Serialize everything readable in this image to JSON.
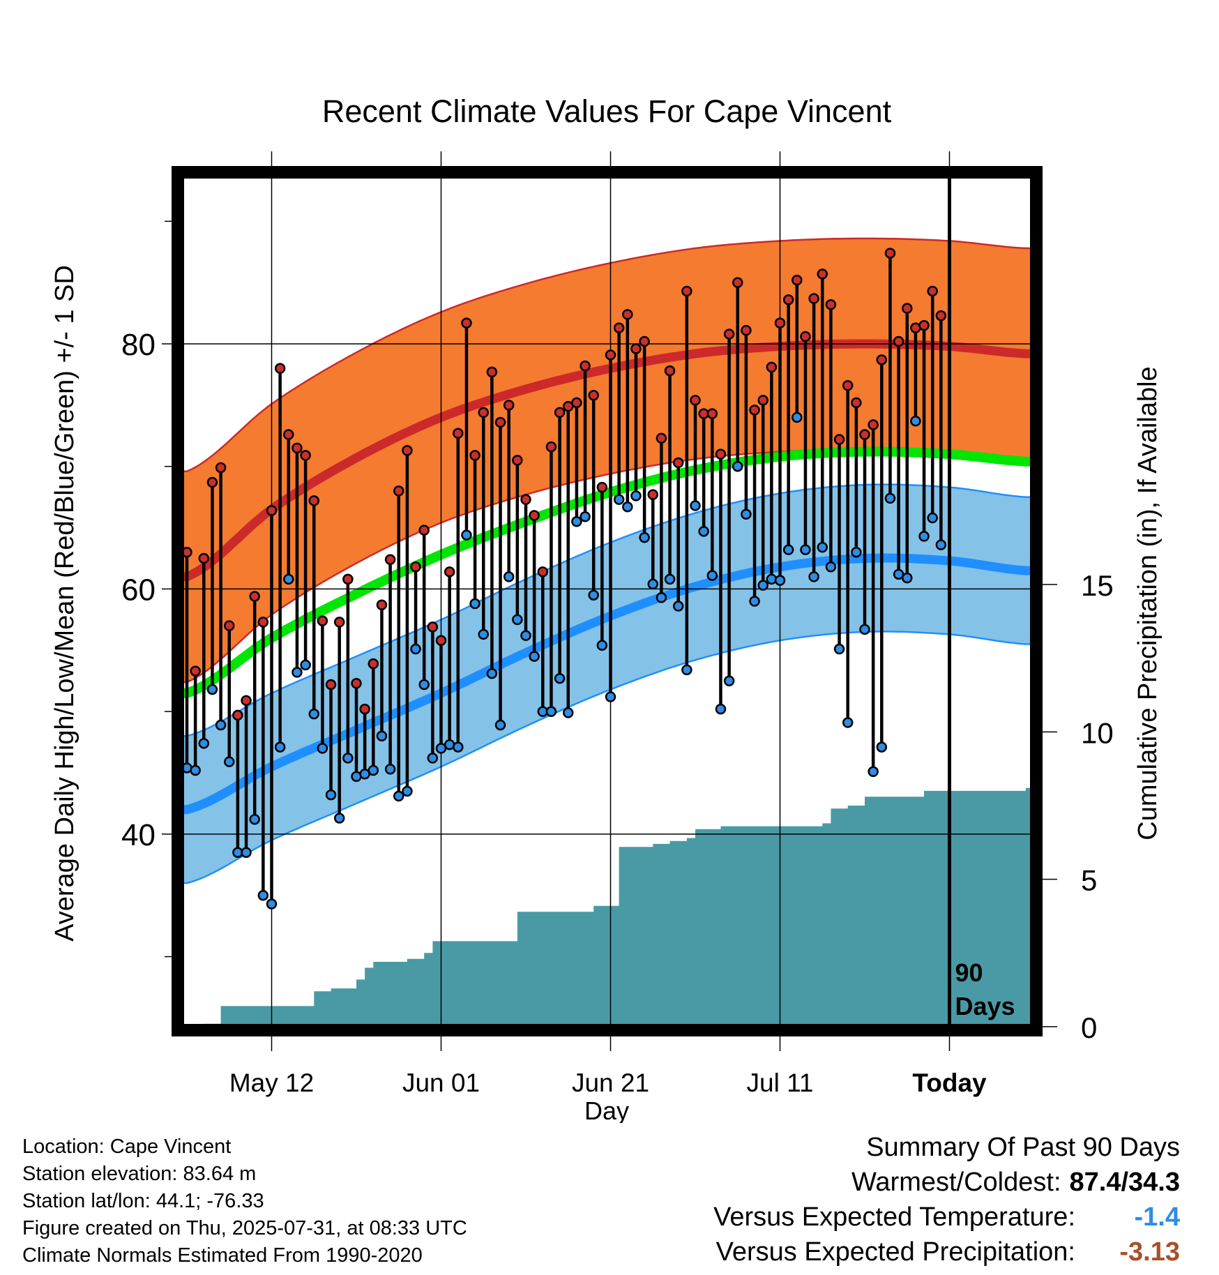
{
  "chart_data": {
    "type": "line",
    "title": "Recent Climate Values For Cape Vincent",
    "ylabel": "Average Daily High/Low/Mean (Red/Blue/Green) +/- 1 SD",
    "y2label": "Cumulative Precipitation (in), If Available",
    "xlabel": "Day",
    "ylim": [
      24,
      94
    ],
    "y2lim": [
      0,
      29.1
    ],
    "yticks": [
      "40",
      "60",
      "80"
    ],
    "y2ticks": [
      "0",
      "5",
      "10",
      "15"
    ],
    "xticks": [
      {
        "day": 10,
        "label": "May 12"
      },
      {
        "day": 30,
        "label": "Jun 01"
      },
      {
        "day": 50,
        "label": "Jun 21"
      },
      {
        "day": 70,
        "label": "Jul 11"
      },
      {
        "day": 90,
        "label": "Today"
      }
    ],
    "today_marker": {
      "day": 90,
      "label_line1": "90",
      "label_line2": "Days"
    },
    "grid": true,
    "colors": {
      "high_band": "#f47b30",
      "high_line": "#cc2a2a",
      "mean_line": "#00e600",
      "low_band": "#85c2e8",
      "low_line": "#1f8fff",
      "precip": "#4a9aa5",
      "high_dot": "#c9302c",
      "low_dot": "#2f8de4"
    },
    "normals": {
      "days": [
        0,
        10,
        20,
        30,
        40,
        50,
        60,
        70,
        80,
        90,
        99
      ],
      "high": [
        61.0,
        66.5,
        70.7,
        74.0,
        76.3,
        78.0,
        79.2,
        79.8,
        80.0,
        79.8,
        79.2
      ],
      "high_sd": 8.6,
      "low": [
        42.0,
        45.5,
        48.5,
        51.5,
        54.8,
        57.8,
        60.2,
        61.8,
        62.5,
        62.3,
        61.5
      ],
      "low_sd": 6.0,
      "mean": [
        51.5,
        56.0,
        59.6,
        62.8,
        65.5,
        67.9,
        69.7,
        70.8,
        71.2,
        71.0,
        70.4
      ]
    },
    "series": [
      {
        "name": "Daily High",
        "values": [
          63.0,
          53.3,
          62.5,
          68.7,
          69.9,
          57.0,
          49.7,
          50.9,
          59.4,
          57.3,
          66.4,
          78.0,
          72.6,
          71.5,
          70.9,
          67.2,
          57.4,
          52.2,
          57.3,
          60.8,
          52.3,
          50.2,
          53.9,
          58.7,
          62.4,
          68.0,
          71.3,
          61.8,
          64.8,
          56.9,
          55.8,
          61.4,
          72.7,
          81.7,
          70.9,
          74.4,
          77.7,
          73.6,
          75.0,
          70.5,
          67.3,
          66.0,
          61.4,
          71.6,
          74.4,
          74.9,
          75.2,
          78.2,
          75.8,
          68.3,
          79.1,
          81.3,
          82.4,
          79.6,
          80.2,
          67.7,
          72.3,
          77.8,
          70.3,
          84.3,
          75.4,
          74.3,
          74.3,
          71.0,
          80.8,
          85.0,
          81.1,
          74.6,
          75.4,
          78.1,
          81.7,
          83.6,
          85.2,
          80.6,
          83.7,
          85.7,
          83.2,
          72.2,
          76.6,
          75.2,
          72.6,
          73.4,
          78.7,
          87.4,
          80.2,
          82.9,
          81.3,
          81.5,
          84.3,
          82.3
        ],
        "lows": [
          45.4,
          45.2,
          47.4,
          51.8,
          48.9,
          45.9,
          38.5,
          38.5,
          41.2,
          35.0,
          34.3,
          47.1,
          60.8,
          53.2,
          53.8,
          49.8,
          47.0,
          43.2,
          41.3,
          46.2,
          44.7,
          44.9,
          45.2,
          48.0,
          45.3,
          43.1,
          43.5,
          55.1,
          52.2,
          46.2,
          47.0,
          47.3,
          47.1,
          64.4,
          58.8,
          56.3,
          53.1,
          48.9,
          61.0,
          57.5,
          56.2,
          54.5,
          50.0,
          50.0,
          52.7,
          49.9,
          65.5,
          65.9,
          59.5,
          55.4,
          51.2,
          67.3,
          66.7,
          67.6,
          64.2,
          60.4,
          59.3,
          60.8,
          58.6,
          53.4,
          66.8,
          64.7,
          61.1,
          50.2,
          52.5,
          70.0,
          66.1,
          59.0,
          60.3,
          60.8,
          60.7,
          63.2,
          74.0,
          63.2,
          61.0,
          63.4,
          61.8,
          55.1,
          49.1,
          63.0,
          56.7,
          45.1,
          47.1,
          67.4,
          61.2,
          60.9,
          73.7,
          64.3,
          65.8,
          63.6
        ]
      }
    ],
    "precip_steps": [
      [
        0,
        0.0
      ],
      [
        2,
        0.1
      ],
      [
        4,
        0.7
      ],
      [
        15,
        1.2
      ],
      [
        17,
        1.3
      ],
      [
        20,
        1.6
      ],
      [
        21,
        2.0
      ],
      [
        22,
        2.2
      ],
      [
        26,
        2.3
      ],
      [
        28,
        2.5
      ],
      [
        29,
        2.9
      ],
      [
        35,
        2.9
      ],
      [
        39,
        3.9
      ],
      [
        48,
        4.1
      ],
      [
        50,
        4.1
      ],
      [
        51,
        6.1
      ],
      [
        55,
        6.2
      ],
      [
        57,
        6.3
      ],
      [
        59,
        6.4
      ],
      [
        60,
        6.7
      ],
      [
        63,
        6.8
      ],
      [
        75,
        6.9
      ],
      [
        76,
        7.4
      ],
      [
        78,
        7.5
      ],
      [
        80,
        7.8
      ],
      [
        86,
        7.8
      ],
      [
        87,
        8.0
      ],
      [
        99,
        8.1
      ]
    ]
  },
  "info": {
    "location": "Location: Cape Vincent",
    "elevation": "Station elevation: 83.64 m",
    "latlon": "Station lat/lon: 44.1; -76.33",
    "created": "Figure created on Thu, 2025-07-31, at 08:33 UTC",
    "normals": "Climate Normals Estimated From 1990-2020"
  },
  "summary": {
    "heading": "Summary Of Past 90 Days",
    "warmest_label": "Warmest/Coldest:",
    "warmest_value": "87.4/34.3",
    "temp_label": "Versus Expected Temperature:",
    "temp_value": "-1.4",
    "temp_color": "#2f8de4",
    "precip_label": "Versus Expected Precipitation:",
    "precip_value": "-3.13",
    "precip_color": "#a8502a"
  }
}
